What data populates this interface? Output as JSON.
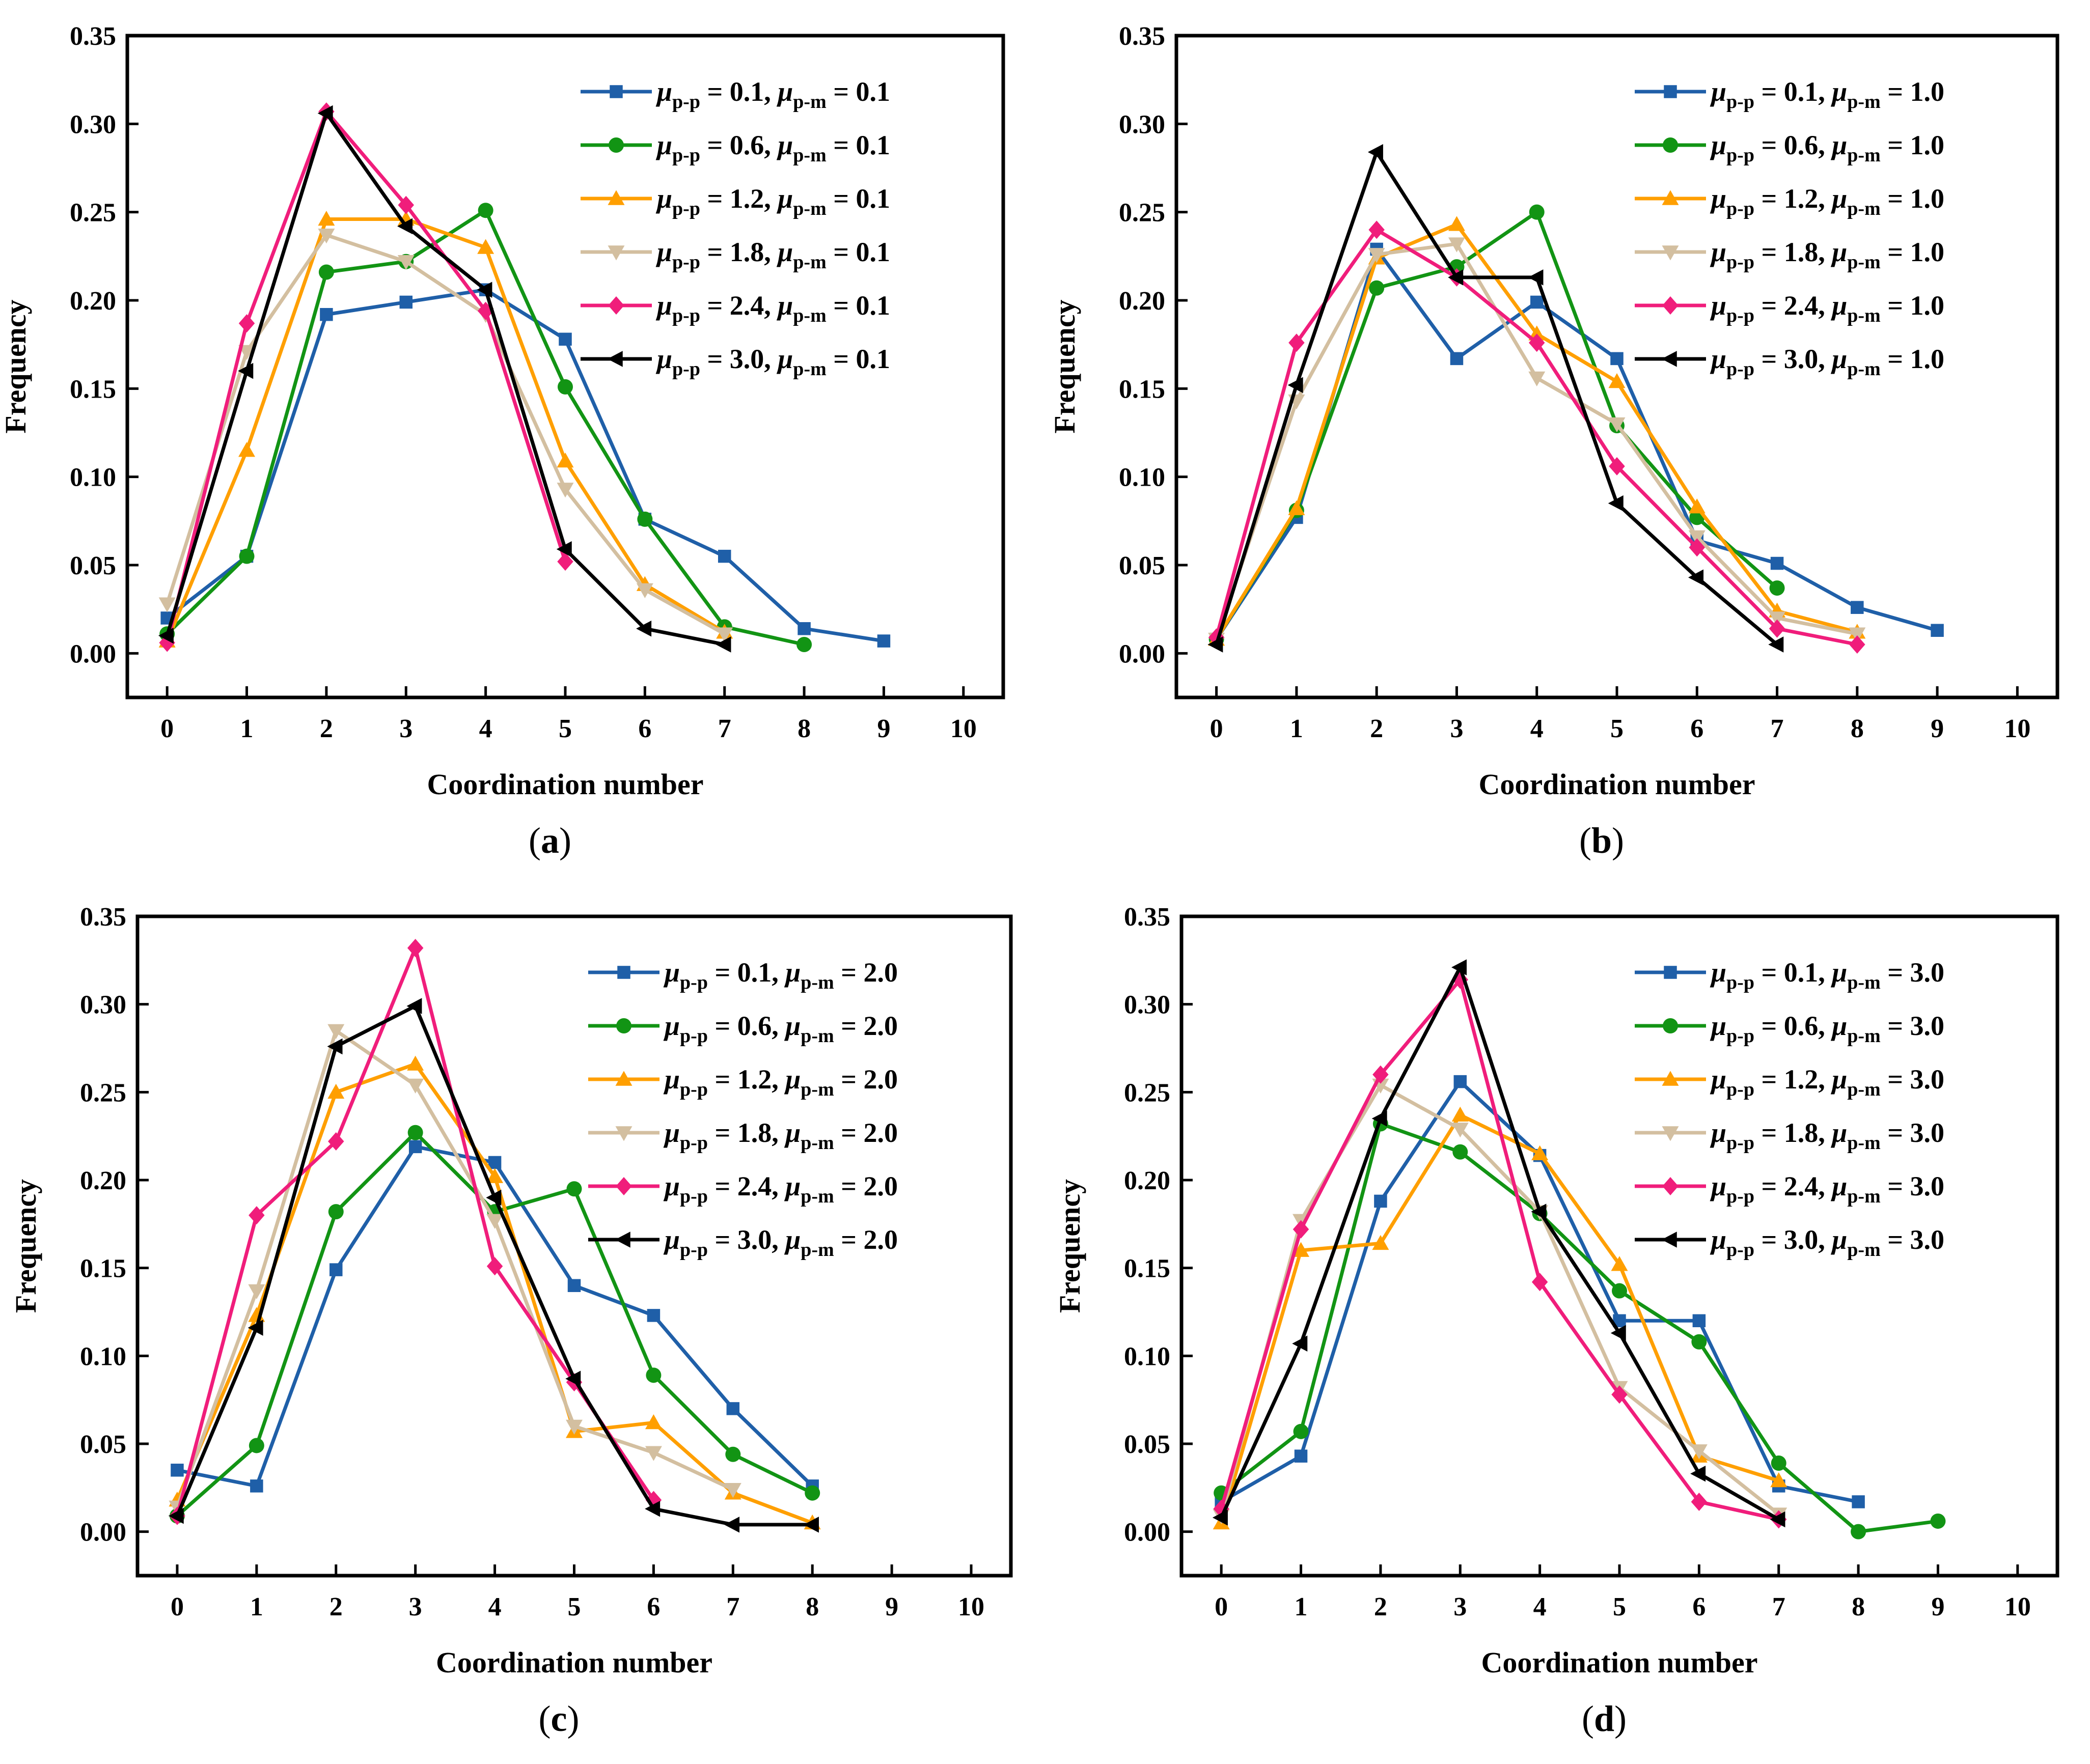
{
  "figure": {
    "panels": [
      {
        "label": "a",
        "chart_data": {
          "type": "line",
          "xlabel": "Coordination number",
          "ylabel": "Frequency",
          "xlim": [
            -0.5,
            10.5
          ],
          "ylim": [
            -0.025,
            0.35
          ],
          "xticks": [
            "0",
            "1",
            "2",
            "3",
            "4",
            "5",
            "6",
            "7",
            "8",
            "9",
            "10"
          ],
          "yticks": [
            "0.00",
            "0.05",
            "0.10",
            "0.15",
            "0.20",
            "0.25",
            "0.30",
            "0.35"
          ],
          "legend": "top-right",
          "series": [
            {
              "name": "μp-p = 0.1, μp-m = 0.1",
              "pp": "0.1",
              "pm": "0.1",
              "color": "#1f5fa8",
              "marker": "square",
              "x": [
                0,
                1,
                2,
                3,
                4,
                5,
                6,
                7,
                8,
                9
              ],
              "y": [
                0.02,
                0.055,
                0.192,
                0.199,
                0.206,
                0.178,
                0.076,
                0.055,
                0.014,
                0.007
              ]
            },
            {
              "name": "μp-p = 0.6, μp-m = 0.1",
              "pp": "0.6",
              "pm": "0.1",
              "color": "#129414",
              "marker": "circle",
              "x": [
                0,
                1,
                2,
                3,
                4,
                5,
                6,
                7,
                8
              ],
              "y": [
                0.011,
                0.055,
                0.216,
                0.222,
                0.251,
                0.151,
                0.076,
                0.015,
                0.005
              ]
            },
            {
              "name": "μp-p = 1.2, μp-m = 0.1",
              "pp": "1.2",
              "pm": "0.1",
              "color": "#ff9f00",
              "marker": "triangle-up",
              "x": [
                0,
                1,
                2,
                3,
                4,
                5,
                6,
                7
              ],
              "y": [
                0.007,
                0.115,
                0.246,
                0.246,
                0.23,
                0.109,
                0.039,
                0.012
              ]
            },
            {
              "name": "μp-p = 1.8, μp-m = 0.1",
              "pp": "1.8",
              "pm": "0.1",
              "color": "#d3bfa0",
              "marker": "triangle-down",
              "x": [
                0,
                1,
                2,
                3,
                4,
                5,
                6,
                7
              ],
              "y": [
                0.028,
                0.171,
                0.237,
                0.222,
                0.192,
                0.093,
                0.036,
                0.011
              ]
            },
            {
              "name": "μp-p = 2.4, μp-m = 0.1",
              "pp": "2.4",
              "pm": "0.1",
              "color": "#f01d7b",
              "marker": "diamond",
              "x": [
                0,
                1,
                2,
                3,
                4,
                5
              ],
              "y": [
                0.006,
                0.187,
                0.307,
                0.254,
                0.194,
                0.052
              ]
            },
            {
              "name": "μp-p = 3.0, μp-m = 0.1",
              "pp": "3.0",
              "pm": "0.1",
              "color": "#000000",
              "marker": "triangle-left",
              "x": [
                0,
                1,
                2,
                3,
                4,
                5,
                6,
                7
              ],
              "y": [
                0.01,
                0.16,
                0.306,
                0.242,
                0.206,
                0.059,
                0.014,
                0.005
              ]
            }
          ]
        }
      },
      {
        "label": "b",
        "chart_data": {
          "type": "line",
          "xlabel": "Coordination number",
          "ylabel": "Frequency",
          "xlim": [
            -0.5,
            10.5
          ],
          "ylim": [
            -0.025,
            0.35
          ],
          "xticks": [
            "0",
            "1",
            "2",
            "3",
            "4",
            "5",
            "6",
            "7",
            "8",
            "9",
            "10"
          ],
          "yticks": [
            "0.00",
            "0.05",
            "0.10",
            "0.15",
            "0.20",
            "0.25",
            "0.30",
            "0.35"
          ],
          "legend": "top-right",
          "series": [
            {
              "name": "μp-p = 0.1, μp-m = 1.0",
              "pp": "0.1",
              "pm": "1.0",
              "color": "#1f5fa8",
              "marker": "square",
              "x": [
                0,
                1,
                2,
                3,
                4,
                5,
                6,
                7,
                8,
                9
              ],
              "y": [
                0.008,
                0.077,
                0.229,
                0.167,
                0.199,
                0.167,
                0.064,
                0.051,
                0.026,
                0.013
              ]
            },
            {
              "name": "μp-p = 0.6, μp-m = 1.0",
              "pp": "0.6",
              "pm": "1.0",
              "color": "#129414",
              "marker": "circle",
              "x": [
                0,
                1,
                2,
                3,
                4,
                5,
                6,
                7
              ],
              "y": [
                0.008,
                0.081,
                0.207,
                0.219,
                0.25,
                0.129,
                0.077,
                0.037
              ]
            },
            {
              "name": "μp-p = 1.2, μp-m = 1.0",
              "pp": "1.2",
              "pm": "1.0",
              "color": "#ff9f00",
              "marker": "triangle-up",
              "x": [
                0,
                1,
                2,
                3,
                4,
                5,
                6,
                7,
                8
              ],
              "y": [
                0.008,
                0.082,
                0.224,
                0.243,
                0.181,
                0.154,
                0.083,
                0.024,
                0.012
              ]
            },
            {
              "name": "μp-p = 1.8, μp-m = 1.0",
              "pp": "1.8",
              "pm": "1.0",
              "color": "#d3bfa0",
              "marker": "triangle-down",
              "x": [
                0,
                1,
                2,
                3,
                4,
                5,
                6,
                7,
                8
              ],
              "y": [
                0.008,
                0.143,
                0.226,
                0.232,
                0.156,
                0.13,
                0.066,
                0.02,
                0.011
              ]
            },
            {
              "name": "μp-p = 2.4, μp-m = 1.0",
              "pp": "2.4",
              "pm": "1.0",
              "color": "#f01d7b",
              "marker": "diamond",
              "x": [
                0,
                1,
                2,
                3,
                4,
                5,
                6,
                7,
                8
              ],
              "y": [
                0.009,
                0.176,
                0.24,
                0.213,
                0.176,
                0.106,
                0.06,
                0.014,
                0.005
              ]
            },
            {
              "name": "μp-p = 3.0, μp-m = 1.0",
              "pp": "3.0",
              "pm": "1.0",
              "color": "#000000",
              "marker": "triangle-left",
              "x": [
                0,
                1,
                2,
                3,
                4,
                5,
                6,
                7
              ],
              "y": [
                0.005,
                0.152,
                0.284,
                0.213,
                0.213,
                0.085,
                0.043,
                0.005
              ]
            }
          ]
        }
      },
      {
        "label": "c",
        "chart_data": {
          "type": "line",
          "xlabel": "Coordination number",
          "ylabel": "Frequency",
          "xlim": [
            -0.5,
            10.5
          ],
          "ylim": [
            -0.025,
            0.35
          ],
          "xticks": [
            "0",
            "1",
            "2",
            "3",
            "4",
            "5",
            "6",
            "7",
            "8",
            "9",
            "10"
          ],
          "yticks": [
            "0.00",
            "0.05",
            "0.10",
            "0.15",
            "0.20",
            "0.25",
            "0.30",
            "0.35"
          ],
          "legend": "top-right",
          "series": [
            {
              "name": "μp-p = 0.1, μp-m = 2.0",
              "pp": "0.1",
              "pm": "2.0",
              "color": "#1f5fa8",
              "marker": "square",
              "x": [
                0,
                1,
                2,
                3,
                4,
                5,
                6,
                7,
                8
              ],
              "y": [
                0.035,
                0.026,
                0.149,
                0.219,
                0.21,
                0.14,
                0.123,
                0.07,
                0.026
              ]
            },
            {
              "name": "μp-p = 0.6, μp-m = 2.0",
              "pp": "0.6",
              "pm": "2.0",
              "color": "#129414",
              "marker": "circle",
              "x": [
                0,
                1,
                2,
                3,
                4,
                5,
                6,
                7,
                8
              ],
              "y": [
                0.009,
                0.049,
                0.182,
                0.227,
                0.182,
                0.195,
                0.089,
                0.044,
                0.022
              ]
            },
            {
              "name": "μp-p = 1.2, μp-m = 2.0",
              "pp": "1.2",
              "pm": "2.0",
              "color": "#ff9f00",
              "marker": "triangle-up",
              "x": [
                0,
                1,
                2,
                3,
                4,
                5,
                6,
                7,
                8
              ],
              "y": [
                0.018,
                0.123,
                0.25,
                0.266,
                0.202,
                0.057,
                0.062,
                0.022,
                0.005
              ]
            },
            {
              "name": "μp-p = 1.8, μp-m = 2.0",
              "pp": "1.8",
              "pm": "2.0",
              "color": "#d3bfa0",
              "marker": "triangle-down",
              "x": [
                0,
                1,
                2,
                3,
                4,
                5,
                6,
                7
              ],
              "y": [
                0.014,
                0.137,
                0.285,
                0.254,
                0.177,
                0.06,
                0.045,
                0.024
              ]
            },
            {
              "name": "μp-p = 2.4, μp-m = 2.0",
              "pp": "2.4",
              "pm": "2.0",
              "color": "#f01d7b",
              "marker": "diamond",
              "x": [
                0,
                1,
                2,
                3,
                4,
                5,
                6
              ],
              "y": [
                0.009,
                0.18,
                0.222,
                0.332,
                0.151,
                0.085,
                0.018
              ]
            },
            {
              "name": "μp-p = 3.0, μp-m = 2.0",
              "pp": "3.0",
              "pm": "2.0",
              "color": "#000000",
              "marker": "triangle-left",
              "x": [
                0,
                1,
                2,
                3,
                4,
                5,
                6,
                7,
                8
              ],
              "y": [
                0.009,
                0.116,
                0.276,
                0.299,
                0.19,
                0.087,
                0.013,
                0.004,
                0.004
              ]
            }
          ]
        }
      },
      {
        "label": "d",
        "chart_data": {
          "type": "line",
          "xlabel": "Coordination number",
          "ylabel": "Frequency",
          "xlim": [
            -0.5,
            10.5
          ],
          "ylim": [
            -0.025,
            0.35
          ],
          "xticks": [
            "0",
            "1",
            "2",
            "3",
            "4",
            "5",
            "6",
            "7",
            "8",
            "9",
            "10"
          ],
          "yticks": [
            "0.00",
            "0.05",
            "0.10",
            "0.15",
            "0.20",
            "0.25",
            "0.30",
            "0.35"
          ],
          "legend": "top-right",
          "series": [
            {
              "name": "μp-p = 0.1, μp-m = 3.0",
              "pp": "0.1",
              "pm": "3.0",
              "color": "#1f5fa8",
              "marker": "square",
              "x": [
                0,
                1,
                2,
                3,
                4,
                5,
                6,
                7,
                8
              ],
              "y": [
                0.017,
                0.043,
                0.188,
                0.256,
                0.214,
                0.12,
                0.12,
                0.026,
                0.017
              ]
            },
            {
              "name": "μp-p = 0.6, μp-m = 3.0",
              "pp": "0.6",
              "pm": "3.0",
              "color": "#129414",
              "marker": "circle",
              "x": [
                0,
                1,
                2,
                3,
                4,
                5,
                6,
                7,
                8,
                9
              ],
              "y": [
                0.022,
                0.057,
                0.232,
                0.216,
                0.181,
                0.137,
                0.108,
                0.039,
                0.0,
                0.006
              ]
            },
            {
              "name": "μp-p = 1.2, μp-m = 3.0",
              "pp": "1.2",
              "pm": "3.0",
              "color": "#ff9f00",
              "marker": "triangle-up",
              "x": [
                0,
                1,
                2,
                3,
                4,
                5,
                6,
                7
              ],
              "y": [
                0.005,
                0.16,
                0.164,
                0.237,
                0.215,
                0.152,
                0.043,
                0.029
              ]
            },
            {
              "name": "μp-p = 1.8, μp-m = 3.0",
              "pp": "1.8",
              "pm": "3.0",
              "color": "#d3bfa0",
              "marker": "triangle-down",
              "x": [
                0,
                1,
                2,
                3,
                4,
                5,
                6,
                7
              ],
              "y": [
                0.009,
                0.177,
                0.254,
                0.229,
                0.182,
                0.082,
                0.046,
                0.01
              ]
            },
            {
              "name": "μp-p = 2.4, μp-m = 3.0",
              "pp": "2.4",
              "pm": "3.0",
              "color": "#f01d7b",
              "marker": "diamond",
              "x": [
                0,
                1,
                2,
                3,
                4,
                5,
                6,
                7
              ],
              "y": [
                0.013,
                0.172,
                0.26,
                0.314,
                0.142,
                0.078,
                0.017,
                0.007
              ]
            },
            {
              "name": "μp-p = 3.0, μp-m = 3.0",
              "pp": "3.0",
              "pm": "3.0",
              "color": "#000000",
              "marker": "triangle-left",
              "x": [
                0,
                1,
                2,
                3,
                4,
                5,
                6,
                7
              ],
              "y": [
                0.008,
                0.107,
                0.235,
                0.321,
                0.182,
                0.113,
                0.033,
                0.007
              ]
            }
          ]
        }
      }
    ]
  }
}
